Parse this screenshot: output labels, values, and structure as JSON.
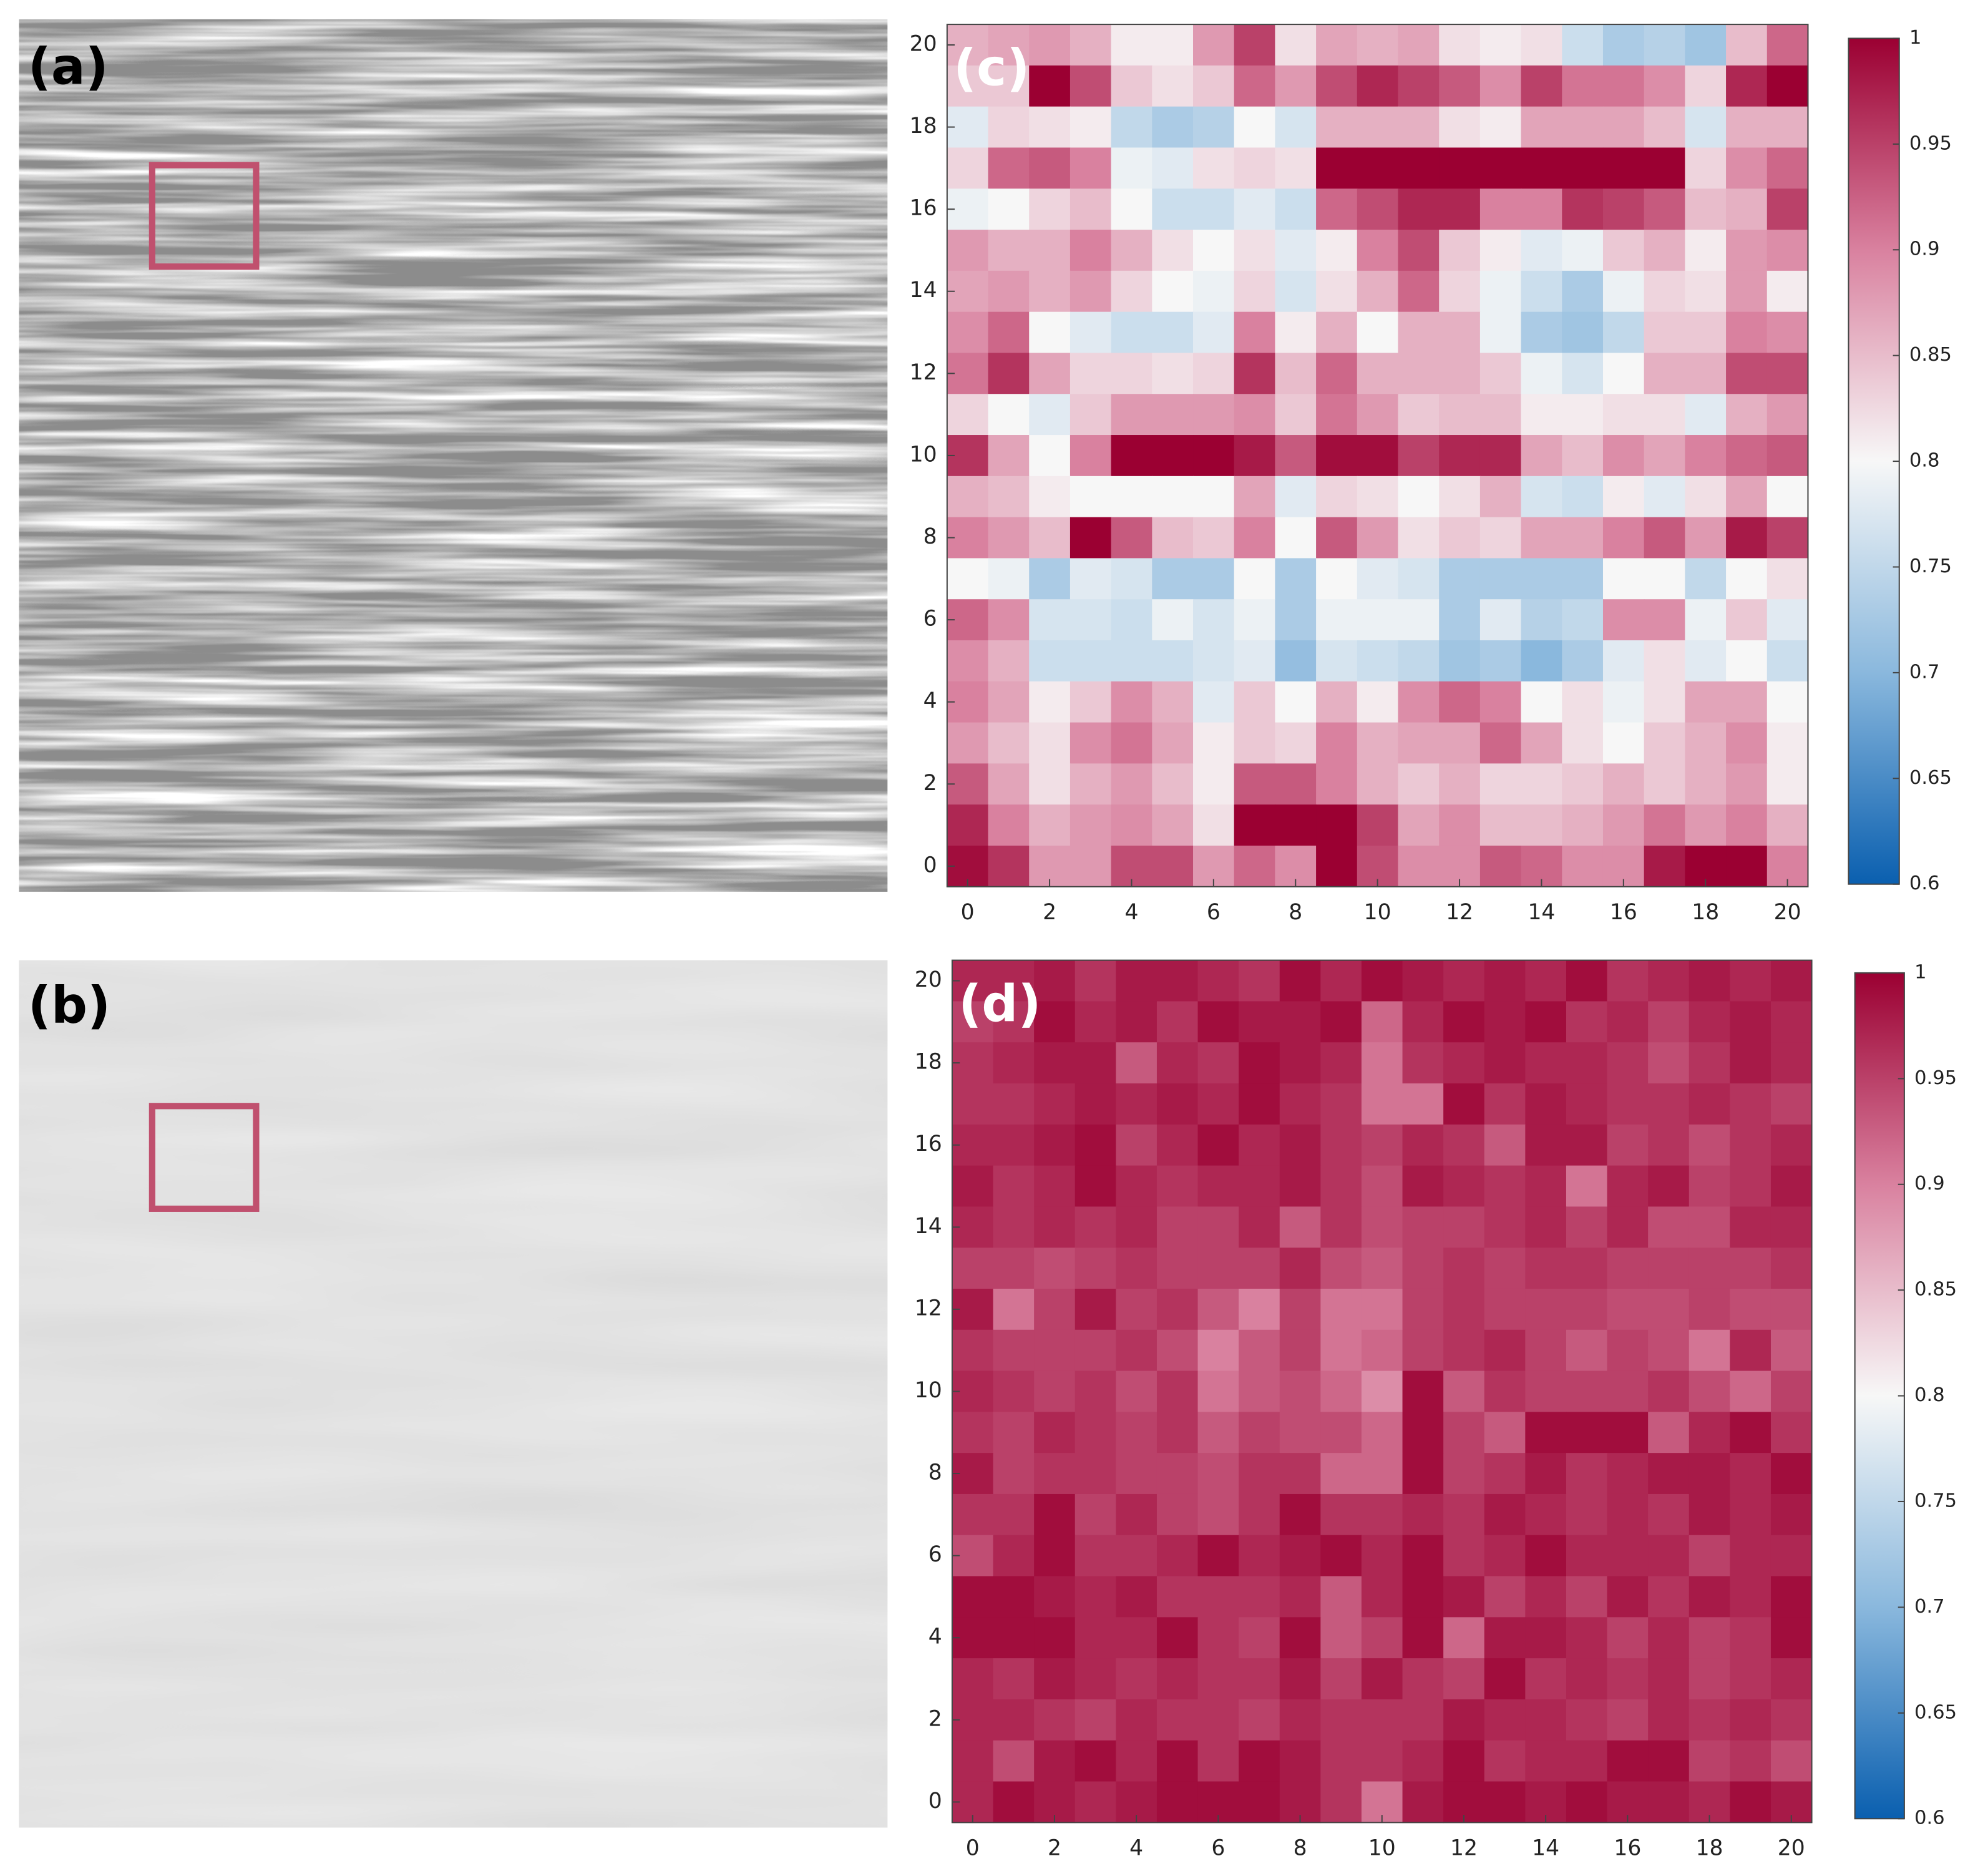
{
  "images": [
    {
      "label": "(a)"
    },
    {
      "label": "(b)"
    }
  ],
  "chart_data": [
    {
      "type": "heatmap",
      "label": "(c)",
      "x": [
        0,
        1,
        2,
        3,
        4,
        5,
        6,
        7,
        8,
        9,
        10,
        11,
        12,
        13,
        14,
        15,
        16,
        17,
        18,
        19,
        20
      ],
      "y": [
        20,
        19,
        18,
        17,
        16,
        15,
        14,
        13,
        12,
        11,
        10,
        9,
        8,
        7,
        6,
        5,
        4,
        3,
        2,
        1,
        0
      ],
      "xlim": [
        -0.5,
        20.5
      ],
      "ylim": [
        -0.5,
        20.5
      ],
      "xticks": [
        0,
        2,
        4,
        6,
        8,
        10,
        12,
        14,
        16,
        18,
        20
      ],
      "yticks": [
        0,
        2,
        4,
        6,
        8,
        10,
        12,
        14,
        16,
        18,
        20
      ],
      "clim": [
        0.6,
        1
      ],
      "cticks": [
        0.6,
        0.65,
        0.7,
        0.75,
        0.8,
        0.85,
        0.9,
        0.95,
        1
      ],
      "colormap": [
        "#0a5faf",
        "#8ab8dd",
        "#f7f7f7",
        "#d9819f",
        "#9b0032"
      ],
      "z": [
        [
          0.86,
          0.87,
          0.88,
          0.86,
          0.81,
          0.81,
          0.88,
          0.95,
          0.82,
          0.87,
          0.86,
          0.87,
          0.82,
          0.81,
          0.82,
          0.76,
          0.73,
          0.74,
          0.72,
          0.85,
          0.92
        ],
        [
          0.84,
          0.84,
          1,
          0.94,
          0.84,
          0.82,
          0.84,
          0.92,
          0.88,
          0.94,
          0.97,
          0.95,
          0.93,
          0.89,
          0.95,
          0.91,
          0.91,
          0.89,
          0.83,
          0.97,
          1
        ],
        [
          0.78,
          0.83,
          0.82,
          0.81,
          0.75,
          0.73,
          0.74,
          0.8,
          0.77,
          0.86,
          0.86,
          0.86,
          0.82,
          0.81,
          0.87,
          0.87,
          0.87,
          0.85,
          0.77,
          0.86,
          0.86
        ],
        [
          0.83,
          0.92,
          0.93,
          0.9,
          0.79,
          0.78,
          0.82,
          0.83,
          0.82,
          1,
          1,
          1,
          1,
          1,
          1,
          1,
          1,
          1,
          0.83,
          0.89,
          0.92
        ],
        [
          0.79,
          0.8,
          0.83,
          0.85,
          0.8,
          0.76,
          0.76,
          0.78,
          0.76,
          0.92,
          0.94,
          0.97,
          0.97,
          0.9,
          0.9,
          0.96,
          0.95,
          0.93,
          0.85,
          0.86,
          0.95
        ],
        [
          0.88,
          0.86,
          0.86,
          0.9,
          0.86,
          0.82,
          0.8,
          0.82,
          0.78,
          0.81,
          0.9,
          0.94,
          0.84,
          0.81,
          0.78,
          0.79,
          0.84,
          0.86,
          0.81,
          0.88,
          0.89
        ],
        [
          0.87,
          0.88,
          0.86,
          0.88,
          0.83,
          0.8,
          0.79,
          0.83,
          0.77,
          0.82,
          0.86,
          0.92,
          0.83,
          0.79,
          0.76,
          0.73,
          0.79,
          0.83,
          0.82,
          0.88,
          0.81
        ],
        [
          0.89,
          0.92,
          0.8,
          0.78,
          0.76,
          0.76,
          0.78,
          0.9,
          0.81,
          0.86,
          0.8,
          0.86,
          0.86,
          0.79,
          0.73,
          0.72,
          0.75,
          0.84,
          0.84,
          0.9,
          0.89
        ],
        [
          0.91,
          0.96,
          0.87,
          0.83,
          0.83,
          0.82,
          0.83,
          0.96,
          0.85,
          0.92,
          0.86,
          0.86,
          0.86,
          0.84,
          0.79,
          0.77,
          0.8,
          0.86,
          0.86,
          0.94,
          0.94
        ],
        [
          0.83,
          0.8,
          0.78,
          0.84,
          0.88,
          0.88,
          0.88,
          0.89,
          0.84,
          0.91,
          0.88,
          0.84,
          0.85,
          0.85,
          0.81,
          0.81,
          0.82,
          0.82,
          0.78,
          0.86,
          0.88
        ],
        [
          0.96,
          0.87,
          0.8,
          0.9,
          1,
          1,
          1,
          0.98,
          0.93,
          0.99,
          0.99,
          0.95,
          0.97,
          0.97,
          0.87,
          0.85,
          0.89,
          0.87,
          0.9,
          0.92,
          0.93
        ],
        [
          0.86,
          0.85,
          0.81,
          0.8,
          0.8,
          0.8,
          0.8,
          0.87,
          0.78,
          0.83,
          0.82,
          0.8,
          0.82,
          0.86,
          0.77,
          0.76,
          0.81,
          0.78,
          0.82,
          0.87,
          0.8
        ],
        [
          0.9,
          0.88,
          0.85,
          1,
          0.93,
          0.85,
          0.84,
          0.9,
          0.8,
          0.93,
          0.88,
          0.82,
          0.84,
          0.83,
          0.87,
          0.87,
          0.9,
          0.93,
          0.88,
          0.98,
          0.95
        ],
        [
          0.8,
          0.79,
          0.73,
          0.78,
          0.77,
          0.73,
          0.73,
          0.8,
          0.73,
          0.8,
          0.78,
          0.77,
          0.73,
          0.73,
          0.73,
          0.73,
          0.8,
          0.8,
          0.75,
          0.8,
          0.82
        ],
        [
          0.92,
          0.89,
          0.77,
          0.77,
          0.76,
          0.79,
          0.77,
          0.79,
          0.73,
          0.79,
          0.79,
          0.79,
          0.73,
          0.78,
          0.74,
          0.75,
          0.89,
          0.89,
          0.79,
          0.84,
          0.78
        ],
        [
          0.89,
          0.86,
          0.76,
          0.76,
          0.76,
          0.76,
          0.77,
          0.78,
          0.71,
          0.77,
          0.76,
          0.75,
          0.72,
          0.73,
          0.7,
          0.73,
          0.78,
          0.82,
          0.78,
          0.8,
          0.76
        ],
        [
          0.9,
          0.87,
          0.81,
          0.84,
          0.89,
          0.86,
          0.78,
          0.84,
          0.8,
          0.86,
          0.81,
          0.89,
          0.92,
          0.9,
          0.8,
          0.82,
          0.79,
          0.82,
          0.87,
          0.87,
          0.8
        ],
        [
          0.88,
          0.85,
          0.82,
          0.89,
          0.91,
          0.87,
          0.81,
          0.84,
          0.83,
          0.9,
          0.86,
          0.87,
          0.87,
          0.92,
          0.87,
          0.82,
          0.8,
          0.84,
          0.86,
          0.89,
          0.81
        ],
        [
          0.93,
          0.87,
          0.82,
          0.86,
          0.88,
          0.85,
          0.81,
          0.93,
          0.93,
          0.9,
          0.86,
          0.84,
          0.86,
          0.83,
          0.83,
          0.84,
          0.86,
          0.84,
          0.86,
          0.88,
          0.81
        ],
        [
          0.97,
          0.9,
          0.86,
          0.88,
          0.89,
          0.87,
          0.82,
          1,
          1,
          1,
          0.95,
          0.87,
          0.89,
          0.85,
          0.85,
          0.86,
          0.88,
          0.91,
          0.88,
          0.9,
          0.86
        ],
        [
          0.99,
          0.96,
          0.88,
          0.88,
          0.94,
          0.94,
          0.88,
          0.92,
          0.89,
          1,
          0.94,
          0.89,
          0.89,
          0.93,
          0.92,
          0.89,
          0.89,
          0.98,
          1,
          1,
          0.9
        ]
      ]
    },
    {
      "type": "heatmap",
      "label": "(d)",
      "x": [
        0,
        1,
        2,
        3,
        4,
        5,
        6,
        7,
        8,
        9,
        10,
        11,
        12,
        13,
        14,
        15,
        16,
        17,
        18,
        19,
        20
      ],
      "y": [
        20,
        19,
        18,
        17,
        16,
        15,
        14,
        13,
        12,
        11,
        10,
        9,
        8,
        7,
        6,
        5,
        4,
        3,
        2,
        1,
        0
      ],
      "xlim": [
        -0.5,
        20.5
      ],
      "ylim": [
        -0.5,
        20.5
      ],
      "xticks": [
        0,
        2,
        4,
        6,
        8,
        10,
        12,
        14,
        16,
        18,
        20
      ],
      "yticks": [
        0,
        2,
        4,
        6,
        8,
        10,
        12,
        14,
        16,
        18,
        20
      ],
      "clim": [
        0.6,
        1
      ],
      "cticks": [
        0.6,
        0.65,
        0.7,
        0.75,
        0.8,
        0.85,
        0.9,
        0.95,
        1
      ],
      "colormap": [
        "#0a5faf",
        "#8ab8dd",
        "#f7f7f7",
        "#d9819f",
        "#9b0032"
      ],
      "z": [
        [
          0.97,
          0.97,
          0.98,
          0.96,
          0.98,
          0.98,
          0.97,
          0.96,
          0.99,
          0.97,
          0.99,
          0.98,
          0.97,
          0.98,
          0.97,
          0.99,
          0.96,
          0.97,
          0.98,
          0.97,
          0.98
        ],
        [
          0.95,
          0.96,
          0.99,
          0.97,
          0.98,
          0.96,
          0.99,
          0.98,
          0.98,
          0.99,
          0.92,
          0.97,
          0.99,
          0.98,
          0.99,
          0.96,
          0.97,
          0.95,
          0.97,
          0.98,
          0.97
        ],
        [
          0.96,
          0.97,
          0.98,
          0.98,
          0.93,
          0.97,
          0.96,
          0.99,
          0.98,
          0.97,
          0.91,
          0.96,
          0.97,
          0.98,
          0.97,
          0.97,
          0.96,
          0.94,
          0.96,
          0.98,
          0.97
        ],
        [
          0.96,
          0.96,
          0.97,
          0.98,
          0.97,
          0.98,
          0.97,
          0.99,
          0.97,
          0.96,
          0.91,
          0.91,
          0.99,
          0.96,
          0.98,
          0.97,
          0.96,
          0.96,
          0.97,
          0.96,
          0.95
        ],
        [
          0.97,
          0.97,
          0.98,
          0.99,
          0.95,
          0.97,
          0.99,
          0.97,
          0.98,
          0.96,
          0.95,
          0.97,
          0.96,
          0.93,
          0.98,
          0.98,
          0.95,
          0.96,
          0.94,
          0.96,
          0.97
        ],
        [
          0.98,
          0.96,
          0.97,
          0.99,
          0.97,
          0.96,
          0.97,
          0.97,
          0.98,
          0.96,
          0.94,
          0.98,
          0.97,
          0.96,
          0.97,
          0.91,
          0.97,
          0.98,
          0.95,
          0.96,
          0.98
        ],
        [
          0.97,
          0.96,
          0.97,
          0.96,
          0.97,
          0.95,
          0.95,
          0.97,
          0.93,
          0.96,
          0.94,
          0.95,
          0.95,
          0.96,
          0.97,
          0.95,
          0.97,
          0.94,
          0.94,
          0.97,
          0.97
        ],
        [
          0.95,
          0.95,
          0.94,
          0.95,
          0.96,
          0.95,
          0.95,
          0.95,
          0.97,
          0.94,
          0.93,
          0.95,
          0.96,
          0.95,
          0.96,
          0.96,
          0.95,
          0.95,
          0.95,
          0.95,
          0.96
        ],
        [
          0.98,
          0.91,
          0.95,
          0.98,
          0.95,
          0.96,
          0.93,
          0.9,
          0.95,
          0.91,
          0.91,
          0.95,
          0.96,
          0.95,
          0.95,
          0.95,
          0.94,
          0.94,
          0.95,
          0.94,
          0.94
        ],
        [
          0.96,
          0.95,
          0.95,
          0.95,
          0.96,
          0.94,
          0.9,
          0.93,
          0.95,
          0.91,
          0.92,
          0.95,
          0.96,
          0.97,
          0.95,
          0.93,
          0.95,
          0.94,
          0.91,
          0.97,
          0.93
        ],
        [
          0.97,
          0.96,
          0.95,
          0.96,
          0.94,
          0.96,
          0.91,
          0.93,
          0.94,
          0.92,
          0.89,
          0.99,
          0.93,
          0.96,
          0.95,
          0.95,
          0.95,
          0.96,
          0.94,
          0.92,
          0.95
        ],
        [
          0.96,
          0.95,
          0.97,
          0.96,
          0.95,
          0.96,
          0.93,
          0.95,
          0.94,
          0.94,
          0.92,
          0.99,
          0.95,
          0.93,
          0.99,
          0.99,
          0.99,
          0.93,
          0.97,
          0.99,
          0.96
        ],
        [
          0.98,
          0.95,
          0.96,
          0.96,
          0.95,
          0.95,
          0.94,
          0.96,
          0.96,
          0.92,
          0.92,
          0.99,
          0.95,
          0.96,
          0.98,
          0.96,
          0.97,
          0.98,
          0.98,
          0.97,
          0.99
        ],
        [
          0.96,
          0.96,
          0.99,
          0.95,
          0.97,
          0.95,
          0.94,
          0.96,
          0.99,
          0.96,
          0.96,
          0.97,
          0.96,
          0.98,
          0.97,
          0.96,
          0.97,
          0.96,
          0.98,
          0.97,
          0.98
        ],
        [
          0.94,
          0.97,
          0.99,
          0.96,
          0.96,
          0.97,
          0.99,
          0.97,
          0.98,
          0.99,
          0.97,
          0.99,
          0.96,
          0.97,
          0.99,
          0.97,
          0.97,
          0.97,
          0.95,
          0.97,
          0.97
        ],
        [
          0.99,
          0.99,
          0.98,
          0.97,
          0.98,
          0.96,
          0.96,
          0.96,
          0.97,
          0.93,
          0.97,
          0.99,
          0.98,
          0.95,
          0.97,
          0.95,
          0.98,
          0.96,
          0.98,
          0.97,
          0.99
        ],
        [
          0.99,
          0.99,
          0.99,
          0.97,
          0.97,
          0.99,
          0.96,
          0.95,
          0.99,
          0.93,
          0.95,
          0.99,
          0.92,
          0.98,
          0.98,
          0.97,
          0.95,
          0.97,
          0.95,
          0.96,
          0.99
        ],
        [
          0.97,
          0.96,
          0.98,
          0.97,
          0.96,
          0.97,
          0.96,
          0.96,
          0.98,
          0.95,
          0.98,
          0.96,
          0.95,
          0.99,
          0.96,
          0.97,
          0.96,
          0.97,
          0.95,
          0.96,
          0.97
        ],
        [
          0.97,
          0.97,
          0.96,
          0.95,
          0.97,
          0.96,
          0.96,
          0.95,
          0.97,
          0.96,
          0.96,
          0.96,
          0.98,
          0.97,
          0.97,
          0.96,
          0.95,
          0.97,
          0.96,
          0.97,
          0.96
        ],
        [
          0.97,
          0.94,
          0.98,
          0.99,
          0.97,
          0.99,
          0.96,
          0.99,
          0.98,
          0.96,
          0.96,
          0.97,
          0.99,
          0.96,
          0.97,
          0.97,
          0.99,
          0.99,
          0.95,
          0.96,
          0.94
        ],
        [
          0.97,
          0.99,
          0.98,
          0.97,
          0.98,
          0.99,
          0.99,
          0.99,
          0.98,
          0.96,
          0.91,
          0.98,
          0.99,
          0.99,
          0.98,
          0.99,
          0.98,
          0.98,
          0.97,
          0.99,
          0.98
        ]
      ]
    }
  ]
}
